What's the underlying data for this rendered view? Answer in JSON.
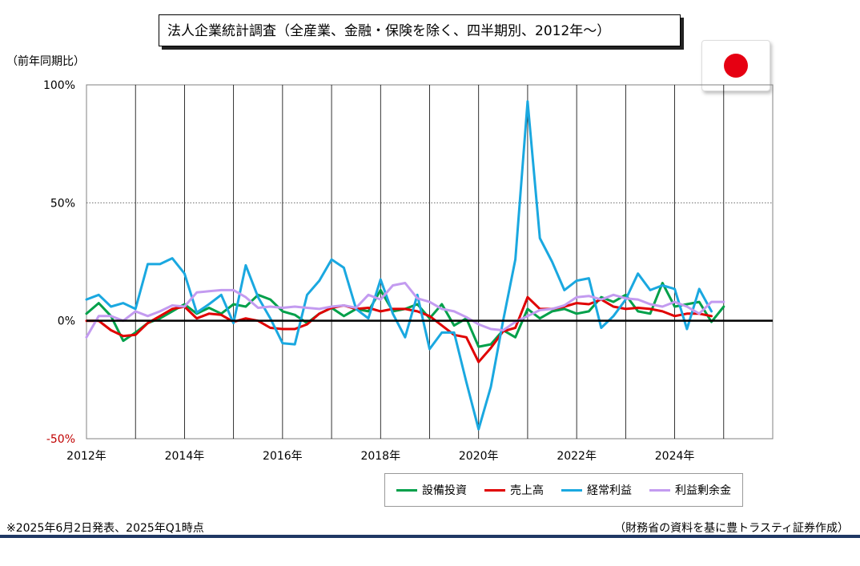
{
  "title": "法人企業統計調査（全産業、金融・保険を除く、四半期別、2012年～）",
  "y_unit_label": "（前年同期比）",
  "flag_color": "#e60012",
  "footnote": "※2025年6月2日発表、2025年Q1時点",
  "source": "（財務省の資料を基に豊トラスティ証券作成）",
  "chart_data": {
    "type": "line",
    "title": "法人企業統計調査（全産業、金融・保険を除く、四半期別、2012年～）",
    "ylabel": "（前年同期比）",
    "xlabel": "",
    "ylim": [
      -50,
      100
    ],
    "xlim": [
      2012,
      2026
    ],
    "yticks": [
      {
        "value": 100,
        "label": "100%",
        "color": "#000000"
      },
      {
        "value": 50,
        "label": "50%",
        "color": "#000000"
      },
      {
        "value": 0,
        "label": "0%",
        "color": "#000000"
      },
      {
        "value": -50,
        "label": "-50%",
        "color": "#c00000"
      }
    ],
    "xticks": [
      {
        "value": 2012,
        "label": "2012年"
      },
      {
        "value": 2014,
        "label": "2014年"
      },
      {
        "value": 2016,
        "label": "2016年"
      },
      {
        "value": 2018,
        "label": "2018年"
      },
      {
        "value": 2020,
        "label": "2020年"
      },
      {
        "value": 2022,
        "label": "2022年"
      },
      {
        "value": 2024,
        "label": "2024年"
      }
    ],
    "grid": true,
    "legend_position": "bottom-right",
    "x_start": 2012.0,
    "x_step": 0.25,
    "series": [
      {
        "name": "設備投資",
        "color": "#00a04a",
        "values": [
          3,
          7.5,
          2,
          -8.5,
          -5,
          -1,
          1,
          4,
          7,
          3,
          5.5,
          3,
          7,
          6,
          11,
          9,
          4,
          2.5,
          -1,
          3,
          5.5,
          2,
          5,
          4,
          13,
          4,
          5,
          7,
          1,
          7,
          -2,
          1,
          -11,
          -10,
          -4,
          -7,
          5,
          1,
          4,
          5,
          3,
          4,
          10,
          8,
          11,
          4,
          3,
          16,
          6,
          7,
          8,
          -0.5,
          6
        ]
      },
      {
        "name": "売上高",
        "color": "#e00000",
        "values": [
          0,
          0,
          -4,
          -6.5,
          -6,
          -1,
          2,
          5,
          6,
          1,
          3,
          2.5,
          -0.5,
          1,
          0,
          -3,
          -3.5,
          -3.5,
          -1.5,
          3,
          5.5,
          6.5,
          5,
          5.5,
          4,
          5,
          5,
          4,
          2,
          -2,
          -6,
          -7,
          -17.5,
          -11.5,
          -4.5,
          -3,
          10,
          5,
          5,
          6,
          7.5,
          7,
          9,
          6,
          5,
          5.5,
          5,
          4,
          2,
          3,
          3,
          2
        ]
      },
      {
        "name": "経常利益",
        "color": "#1aa8e0",
        "values": [
          9,
          11,
          6,
          7.5,
          5,
          24,
          24,
          26.5,
          20,
          3.5,
          7,
          11,
          -1,
          23.5,
          10,
          1,
          -9.5,
          -10,
          11,
          17,
          26,
          22.5,
          5,
          1,
          17.5,
          3,
          -7,
          11,
          -12,
          -5,
          -5,
          -26,
          -46,
          -28,
          0,
          26,
          93,
          35,
          25,
          13,
          17,
          18,
          -3,
          2,
          9,
          20,
          13,
          15,
          13.5,
          -3.5,
          13.5,
          4
        ]
      },
      {
        "name": "利益剰余金",
        "color": "#c39bf0",
        "values": [
          -7,
          2,
          2,
          0,
          4,
          2,
          4,
          6.5,
          6,
          12,
          12.5,
          13,
          13,
          10,
          5.5,
          6,
          5.5,
          6,
          5.5,
          5,
          6,
          6.5,
          5.5,
          11,
          9,
          15,
          16,
          9.5,
          8,
          5,
          4,
          1.5,
          -1.5,
          -3.5,
          -4,
          -0.5,
          2,
          4.5,
          5,
          6.5,
          10,
          10.5,
          9,
          11,
          9.5,
          9,
          7,
          6,
          8,
          6,
          3,
          8,
          8
        ]
      }
    ]
  }
}
